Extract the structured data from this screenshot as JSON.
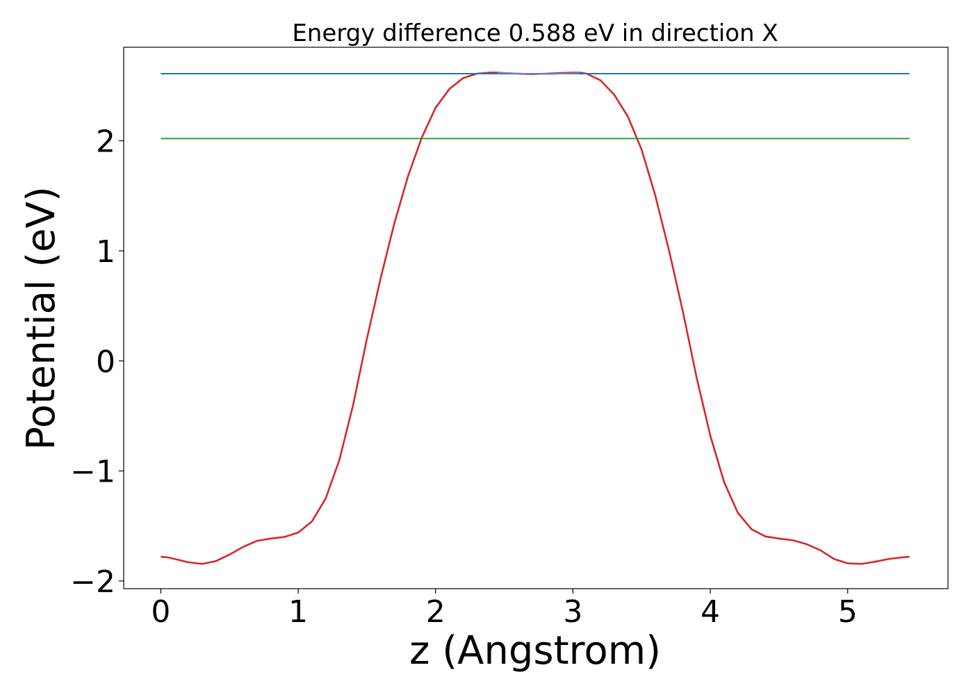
{
  "chart_data": {
    "type": "line",
    "title": "Energy difference 0.588 eV in direction X",
    "xlabel": "z (Angstrom)",
    "ylabel": "Potential (eV)",
    "xlim": [
      -0.27,
      5.73
    ],
    "ylim": [
      -2.07,
      2.85
    ],
    "xticks": [
      0,
      1,
      2,
      3,
      4,
      5
    ],
    "xtick_labels": [
      "0",
      "1",
      "2",
      "3",
      "4",
      "5"
    ],
    "yticks": [
      -2,
      -1,
      0,
      1,
      2
    ],
    "ytick_labels": [
      "−2",
      "−1",
      "0",
      "1",
      "2"
    ],
    "grid": false,
    "series": [
      {
        "color": "#d62728",
        "x": [
          0.0,
          0.05,
          0.1,
          0.2,
          0.3,
          0.4,
          0.5,
          0.6,
          0.7,
          0.8,
          0.9,
          1.0,
          1.1,
          1.2,
          1.3,
          1.4,
          1.5,
          1.6,
          1.7,
          1.8,
          1.9,
          2.0,
          2.1,
          2.2,
          2.3,
          2.4,
          2.45,
          2.5,
          2.6,
          2.7,
          2.8,
          2.9,
          3.0,
          3.05,
          3.1,
          3.2,
          3.3,
          3.4,
          3.5,
          3.6,
          3.7,
          3.8,
          3.9,
          4.0,
          4.1,
          4.2,
          4.3,
          4.4,
          4.5,
          4.6,
          4.7,
          4.8,
          4.9,
          5.0,
          5.1,
          5.2,
          5.3,
          5.4,
          5.45
        ],
        "y": [
          -1.78,
          -1.785,
          -1.8,
          -1.83,
          -1.845,
          -1.82,
          -1.76,
          -1.69,
          -1.635,
          -1.615,
          -1.6,
          -1.56,
          -1.46,
          -1.25,
          -0.9,
          -0.4,
          0.2,
          0.75,
          1.25,
          1.68,
          2.03,
          2.3,
          2.47,
          2.57,
          2.61,
          2.62,
          2.62,
          2.615,
          2.61,
          2.605,
          2.61,
          2.615,
          2.62,
          2.62,
          2.61,
          2.55,
          2.42,
          2.22,
          1.92,
          1.5,
          1.0,
          0.45,
          -0.15,
          -0.68,
          -1.1,
          -1.38,
          -1.53,
          -1.595,
          -1.615,
          -1.63,
          -1.665,
          -1.72,
          -1.8,
          -1.84,
          -1.845,
          -1.825,
          -1.8,
          -1.785,
          -1.78
        ]
      },
      {
        "color": "#1f77b4",
        "x": [
          0.0,
          5.45
        ],
        "y": [
          2.61,
          2.61
        ]
      },
      {
        "color": "#2ca02c",
        "x": [
          0.0,
          5.45
        ],
        "y": [
          2.02,
          2.02
        ]
      },
      {
        "color": "#7f7fbf",
        "x": [
          2.45,
          2.55,
          2.7,
          2.85,
          3.0,
          3.05
        ],
        "y": [
          2.62,
          2.615,
          2.607,
          2.607,
          2.615,
          2.62
        ]
      }
    ]
  }
}
